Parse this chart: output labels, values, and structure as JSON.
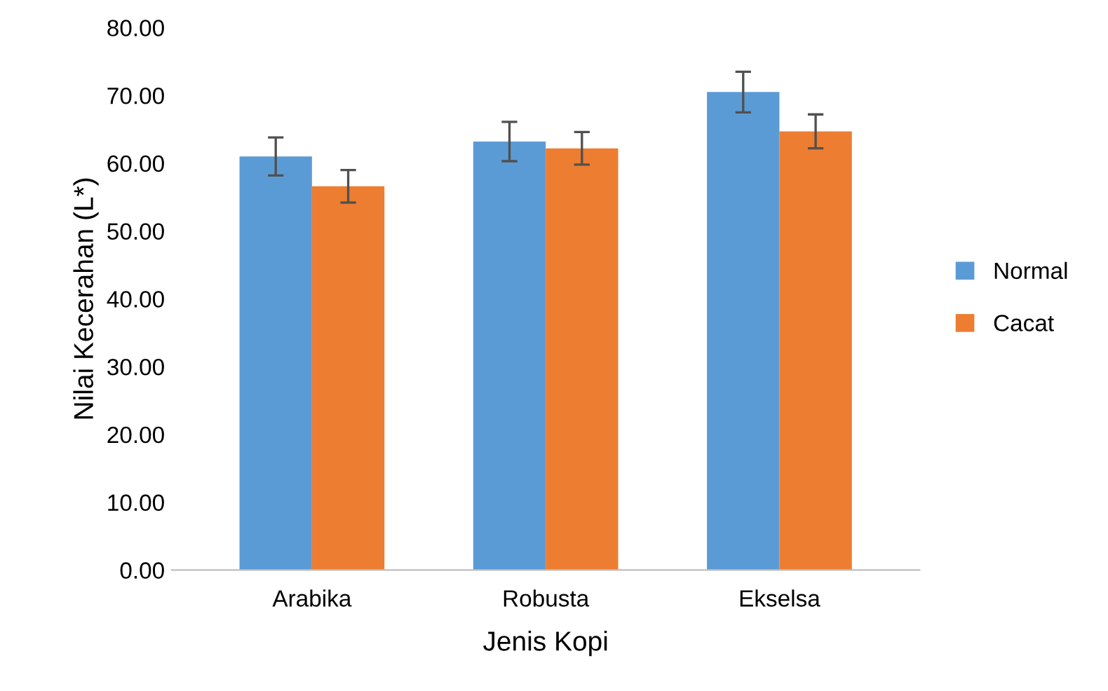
{
  "chart_data": {
    "type": "bar",
    "xlabel": "Jenis Kopi",
    "ylabel": "Nilai Kecerahan (L*)",
    "categories": [
      "Arabika",
      "Robusta",
      "Ekselsa"
    ],
    "series": [
      {
        "name": "Normal",
        "color": "#5b9bd5",
        "values": [
          61.0,
          63.2,
          70.5
        ],
        "errors": [
          2.8,
          2.9,
          3.0
        ]
      },
      {
        "name": "Cacat",
        "color": "#ed7d31",
        "values": [
          56.6,
          62.2,
          64.7
        ],
        "errors": [
          2.4,
          2.4,
          2.5
        ]
      }
    ],
    "ylim": [
      0,
      80
    ],
    "yticks": [
      {
        "value": 0,
        "label": "0.00"
      },
      {
        "value": 10,
        "label": "10.00"
      },
      {
        "value": 20,
        "label": "20.00"
      },
      {
        "value": 30,
        "label": "30.00"
      },
      {
        "value": 40,
        "label": "40.00"
      },
      {
        "value": 50,
        "label": "50.00"
      },
      {
        "value": 60,
        "label": "60.00"
      },
      {
        "value": 70,
        "label": "70.00"
      },
      {
        "value": 80,
        "label": "80.00"
      }
    ],
    "grid": false,
    "legend": "right"
  }
}
